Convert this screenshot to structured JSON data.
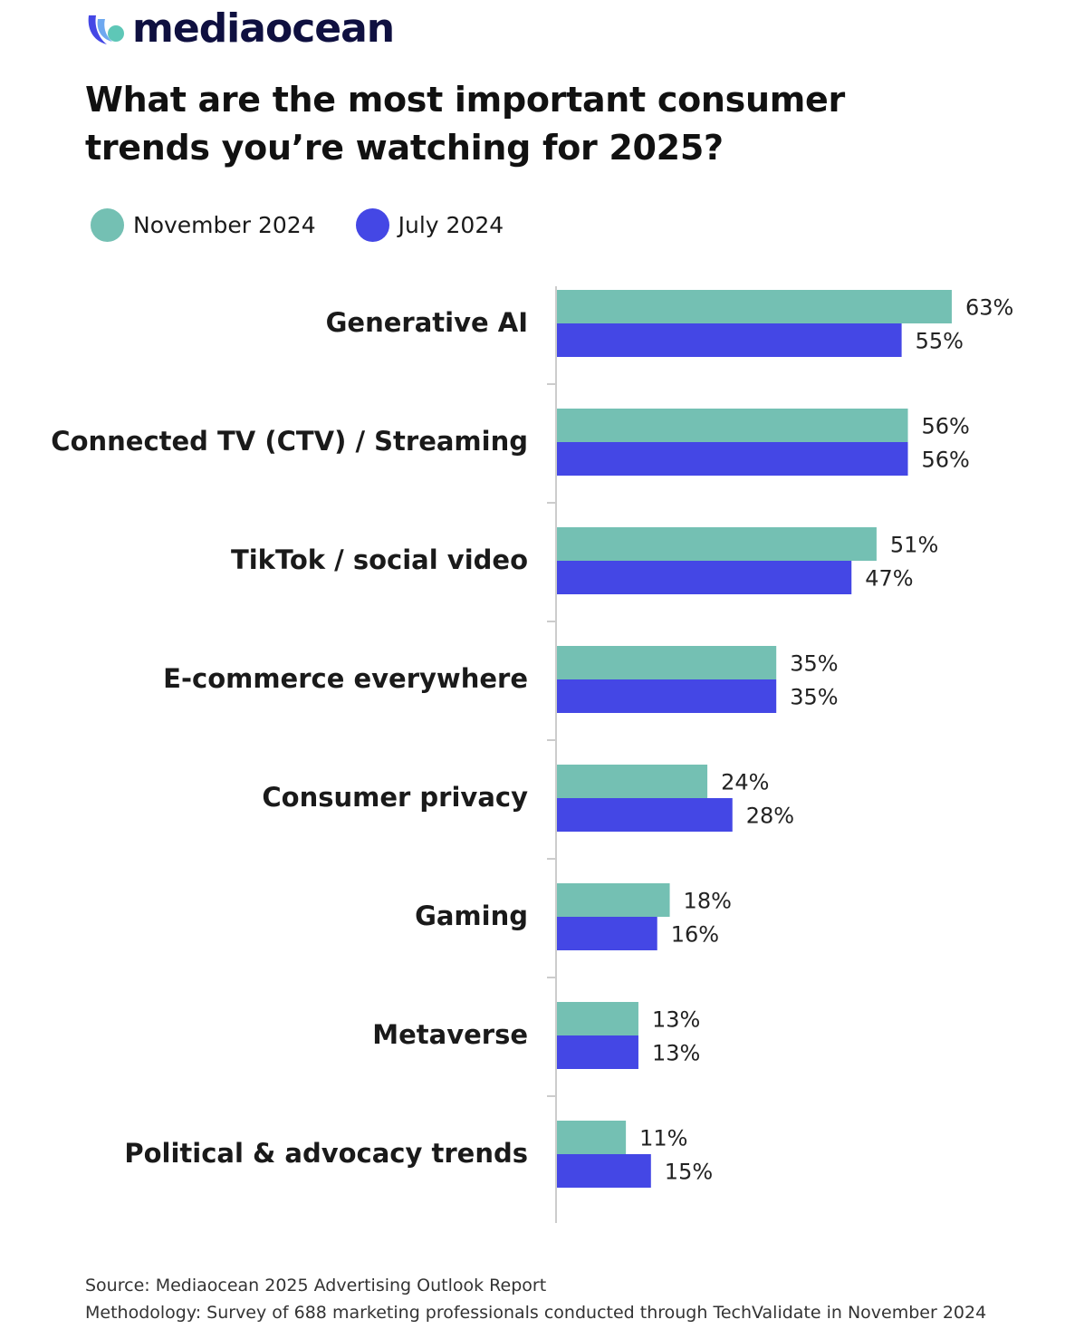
{
  "brand": {
    "name": "mediaocean"
  },
  "colors": {
    "november": "#74c0b3",
    "july": "#4447e5",
    "text": "#1a1a1a",
    "axis": "#cccccc"
  },
  "footer": {
    "source": "Source: Mediaocean 2025 Advertising Outlook Report",
    "methodology": "Methodology: Survey of 688 marketing professionals conducted through TechValidate in November 2024"
  },
  "chart_data": {
    "type": "bar",
    "orientation": "horizontal",
    "title": "What are the most important consumer trends you’re watching for 2025?",
    "xlabel": "",
    "ylabel": "",
    "xlim": [
      0,
      70
    ],
    "grid": false,
    "legend_position": "top-left",
    "categories": [
      "Generative AI",
      "Connected TV (CTV) / Streaming",
      "TikTok / social video",
      "E-commerce everywhere",
      "Consumer privacy",
      "Gaming",
      "Metaverse",
      "Political & advocacy trends"
    ],
    "series": [
      {
        "name": "November 2024",
        "values": [
          63,
          56,
          51,
          35,
          24,
          18,
          13,
          11
        ],
        "labels": [
          "63%",
          "56%",
          "51%",
          "35%",
          "24%",
          "18%",
          "13%",
          "11%"
        ]
      },
      {
        "name": "July 2024",
        "values": [
          55,
          56,
          47,
          35,
          28,
          16,
          13,
          15
        ],
        "labels": [
          "55%",
          "56%",
          "47%",
          "35%",
          "28%",
          "16%",
          "13%",
          "15%"
        ]
      }
    ]
  }
}
